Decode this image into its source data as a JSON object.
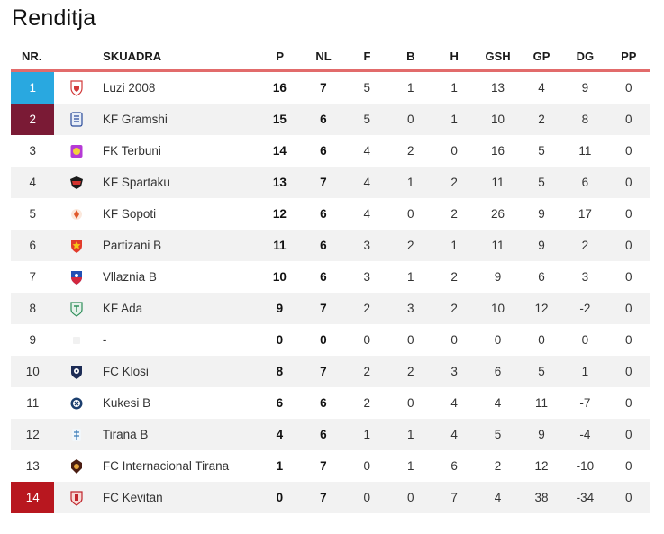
{
  "title": "Renditja",
  "headers": {
    "nr": "NR.",
    "team": "SKUADRA",
    "p": "P",
    "nl": "NL",
    "f": "F",
    "b": "B",
    "h": "H",
    "gsh": "GSH",
    "gp": "GP",
    "dg": "DG",
    "pp": "PP"
  },
  "colors": {
    "accent_line": "#e26b6b",
    "promotion": "#29a8e0",
    "second": "#7a1a35",
    "relegation": "#b8171f"
  },
  "rows": [
    {
      "nr": "1",
      "team": "Luzi 2008",
      "p": "16",
      "nl": "7",
      "f": "5",
      "b": "1",
      "h": "1",
      "gsh": "13",
      "gp": "4",
      "dg": "9",
      "pp": "0",
      "crest": "luzi-crest"
    },
    {
      "nr": "2",
      "team": "KF Gramshi",
      "p": "15",
      "nl": "6",
      "f": "5",
      "b": "0",
      "h": "1",
      "gsh": "10",
      "gp": "2",
      "dg": "8",
      "pp": "0",
      "crest": "gramshi-crest"
    },
    {
      "nr": "3",
      "team": "FK Terbuni",
      "p": "14",
      "nl": "6",
      "f": "4",
      "b": "2",
      "h": "0",
      "gsh": "16",
      "gp": "5",
      "dg": "11",
      "pp": "0",
      "crest": "terbuni-crest"
    },
    {
      "nr": "4",
      "team": "KF Spartaku",
      "p": "13",
      "nl": "7",
      "f": "4",
      "b": "1",
      "h": "2",
      "gsh": "11",
      "gp": "5",
      "dg": "6",
      "pp": "0",
      "crest": "spartaku-crest"
    },
    {
      "nr": "5",
      "team": "KF Sopoti",
      "p": "12",
      "nl": "6",
      "f": "4",
      "b": "0",
      "h": "2",
      "gsh": "26",
      "gp": "9",
      "dg": "17",
      "pp": "0",
      "crest": "sopoti-crest"
    },
    {
      "nr": "6",
      "team": "Partizani B",
      "p": "11",
      "nl": "6",
      "f": "3",
      "b": "2",
      "h": "1",
      "gsh": "11",
      "gp": "9",
      "dg": "2",
      "pp": "0",
      "crest": "partizani-crest"
    },
    {
      "nr": "7",
      "team": "Vllaznia B",
      "p": "10",
      "nl": "6",
      "f": "3",
      "b": "1",
      "h": "2",
      "gsh": "9",
      "gp": "6",
      "dg": "3",
      "pp": "0",
      "crest": "vllaznia-crest"
    },
    {
      "nr": "8",
      "team": "KF Ada",
      "p": "9",
      "nl": "7",
      "f": "2",
      "b": "3",
      "h": "2",
      "gsh": "10",
      "gp": "12",
      "dg": "-2",
      "pp": "0",
      "crest": "ada-crest"
    },
    {
      "nr": "9",
      "team": "-",
      "p": "0",
      "nl": "0",
      "f": "0",
      "b": "0",
      "h": "0",
      "gsh": "0",
      "gp": "0",
      "dg": "0",
      "pp": "0",
      "crest": "blank-crest"
    },
    {
      "nr": "10",
      "team": "FC Klosi",
      "p": "8",
      "nl": "7",
      "f": "2",
      "b": "2",
      "h": "3",
      "gsh": "6",
      "gp": "5",
      "dg": "1",
      "pp": "0",
      "crest": "klosi-crest"
    },
    {
      "nr": "11",
      "team": "Kukesi B",
      "p": "6",
      "nl": "6",
      "f": "2",
      "b": "0",
      "h": "4",
      "gsh": "4",
      "gp": "11",
      "dg": "-7",
      "pp": "0",
      "crest": "kukesi-crest"
    },
    {
      "nr": "12",
      "team": "Tirana B",
      "p": "4",
      "nl": "6",
      "f": "1",
      "b": "1",
      "h": "4",
      "gsh": "5",
      "gp": "9",
      "dg": "-4",
      "pp": "0",
      "crest": "tirana-crest"
    },
    {
      "nr": "13",
      "team": "FC Internacional Tirana",
      "p": "1",
      "nl": "7",
      "f": "0",
      "b": "1",
      "h": "6",
      "gsh": "2",
      "gp": "12",
      "dg": "-10",
      "pp": "0",
      "crest": "internacional-crest"
    },
    {
      "nr": "14",
      "team": "FC Kevitan",
      "p": "0",
      "nl": "7",
      "f": "0",
      "b": "0",
      "h": "7",
      "gsh": "4",
      "gp": "38",
      "dg": "-34",
      "pp": "0",
      "crest": "kevitan-crest"
    }
  ]
}
